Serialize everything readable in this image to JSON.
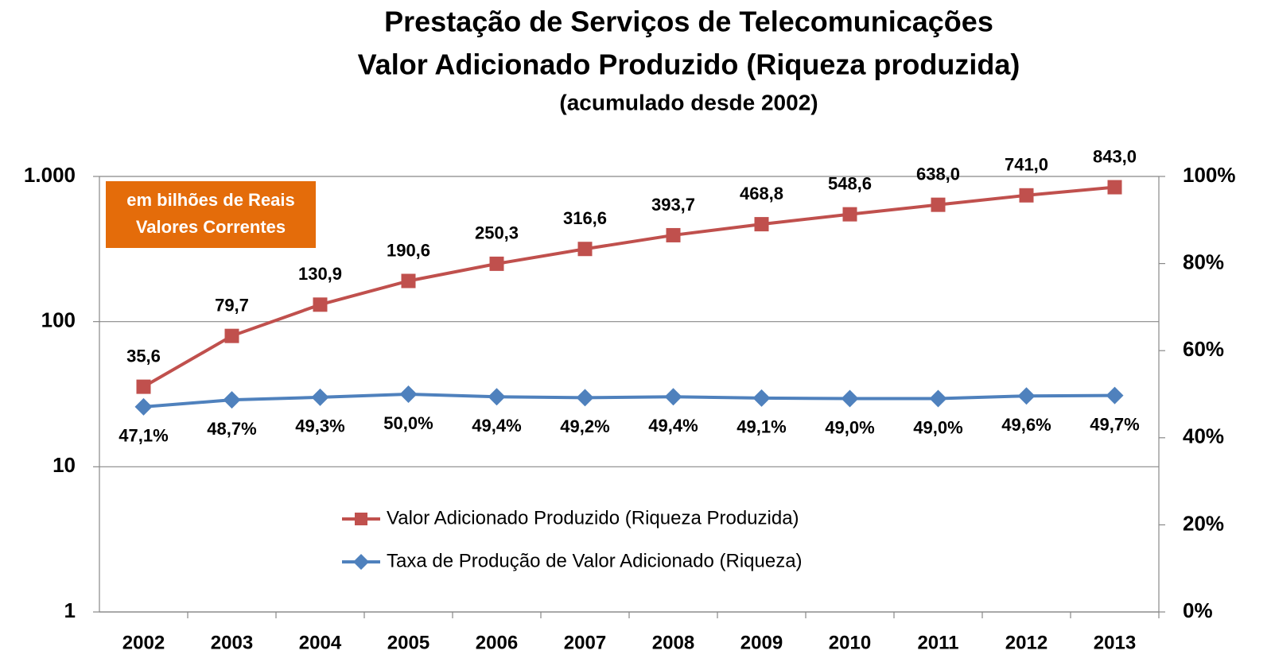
{
  "chart_data": {
    "type": "line",
    "title": "Prestação de Serviços de Telecomunicações",
    "subtitle": "Valor Adicionado Produzido (Riqueza produzida)",
    "note": "(acumulado desde 2002)",
    "annotation": [
      "em bilhões de Reais",
      "Valores Correntes"
    ],
    "categories": [
      "2002",
      "2003",
      "2004",
      "2005",
      "2006",
      "2007",
      "2008",
      "2009",
      "2010",
      "2011",
      "2012",
      "2013"
    ],
    "series": [
      {
        "name": "Valor Adicionado Produzido (Riqueza Produzida)",
        "color": "#c0504d",
        "marker": "square",
        "values": [
          35.6,
          79.7,
          130.9,
          190.6,
          250.3,
          316.6,
          393.7,
          468.8,
          548.6,
          638.0,
          741.0,
          843.0
        ],
        "value_labels": [
          "35,6",
          "79,7",
          "130,9",
          "190,6",
          "250,3",
          "316,6",
          "393,7",
          "468,8",
          "548,6",
          "638,0",
          "741,0",
          "843,0"
        ]
      },
      {
        "name": "Taxa de Produção de Valor Adicionado (Riqueza)",
        "color": "#4f81bd",
        "marker": "diamond",
        "axis": "y2",
        "values": [
          47.1,
          48.7,
          49.3,
          50.0,
          49.4,
          49.2,
          49.4,
          49.1,
          49.0,
          49.0,
          49.6,
          49.7
        ],
        "value_labels": [
          "47,1%",
          "48,7%",
          "49,3%",
          "50,0%",
          "49,4%",
          "49,2%",
          "49,4%",
          "49,1%",
          "49,0%",
          "49,0%",
          "49,6%",
          "49,7%"
        ]
      }
    ],
    "ylim": [
      1,
      1000
    ],
    "yscale": "log",
    "yticks": [
      1,
      10,
      100,
      {
        "value": 1000,
        "label": "1.000"
      }
    ],
    "y2lim": [
      0,
      100
    ],
    "y2ticks": [
      {
        "value": 0,
        "label": "0%"
      },
      {
        "value": 20,
        "label": "20%"
      },
      {
        "value": 40,
        "label": "40%"
      },
      {
        "value": 60,
        "label": "60%"
      },
      {
        "value": 80,
        "label": "80%"
      },
      {
        "value": 100,
        "label": "100%"
      }
    ],
    "grid": true
  }
}
